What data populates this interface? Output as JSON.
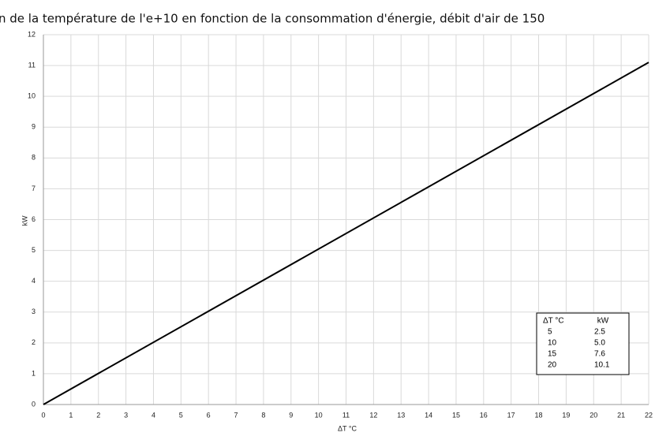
{
  "chart_data": {
    "type": "line",
    "title": "n de la température de l'e+10 en fonction de la consommation d'énergie, débit d'air de 150",
    "xlabel": "ΔT °C",
    "ylabel": "kW",
    "x": [
      0,
      22
    ],
    "series": [
      {
        "name": null,
        "color": "#000000",
        "values": [
          0,
          11.1
        ]
      }
    ],
    "xlim": [
      0,
      22
    ],
    "xticks": [
      0,
      1,
      2,
      3,
      4,
      5,
      6,
      7,
      8,
      9,
      10,
      11,
      12,
      13,
      14,
      15,
      16,
      17,
      18,
      19,
      20,
      21,
      22
    ],
    "ylim": [
      0,
      12
    ],
    "yticks": [
      0,
      1,
      2,
      3,
      4,
      5,
      6,
      7,
      8,
      9,
      10,
      11,
      12
    ],
    "grid": true,
    "table": {
      "columns": [
        "ΔT °C",
        "kW"
      ],
      "rows": [
        [
          "5",
          "2.5"
        ],
        [
          "10",
          "5.0"
        ],
        [
          "15",
          "7.6"
        ],
        [
          "20",
          "10.1"
        ]
      ]
    }
  }
}
